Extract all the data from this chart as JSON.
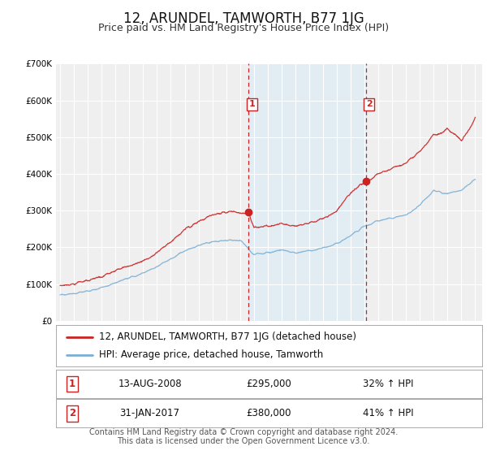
{
  "title": "12, ARUNDEL, TAMWORTH, B77 1JG",
  "subtitle": "Price paid vs. HM Land Registry's House Price Index (HPI)",
  "ylim": [
    0,
    700000
  ],
  "yticks": [
    0,
    100000,
    200000,
    300000,
    400000,
    500000,
    600000,
    700000
  ],
  "ytick_labels": [
    "£0",
    "£100K",
    "£200K",
    "£300K",
    "£400K",
    "£500K",
    "£600K",
    "£700K"
  ],
  "xlim_start": 1994.7,
  "xlim_end": 2025.5,
  "xticks": [
    1995,
    1996,
    1997,
    1998,
    1999,
    2000,
    2001,
    2002,
    2003,
    2004,
    2005,
    2006,
    2007,
    2008,
    2009,
    2010,
    2011,
    2012,
    2013,
    2014,
    2015,
    2016,
    2017,
    2018,
    2019,
    2020,
    2021,
    2022,
    2023,
    2024,
    2025
  ],
  "background_color": "#ffffff",
  "plot_bg_color": "#efefef",
  "grid_color": "#ffffff",
  "hpi_line_color": "#7bafd4",
  "price_line_color": "#cc2222",
  "vline_color": "#cc2222",
  "shade_color": "#daeaf7",
  "shade_alpha": 0.6,
  "event1_x": 2008.617,
  "event2_x": 2017.083,
  "event1_price": 295000,
  "event2_price": 380000,
  "event1_label": "1",
  "event2_label": "2",
  "event1_date": "13-AUG-2008",
  "event2_date": "31-JAN-2017",
  "event1_hpi_pct": "32% ↑ HPI",
  "event2_hpi_pct": "41% ↑ HPI",
  "legend_price_label": "12, ARUNDEL, TAMWORTH, B77 1JG (detached house)",
  "legend_hpi_label": "HPI: Average price, detached house, Tamworth",
  "footer1": "Contains HM Land Registry data © Crown copyright and database right 2024.",
  "footer2": "This data is licensed under the Open Government Licence v3.0.",
  "title_fontsize": 12,
  "subtitle_fontsize": 9,
  "tick_fontsize": 7.5,
  "legend_fontsize": 8.5,
  "table_fontsize": 8.5,
  "footer_fontsize": 7
}
